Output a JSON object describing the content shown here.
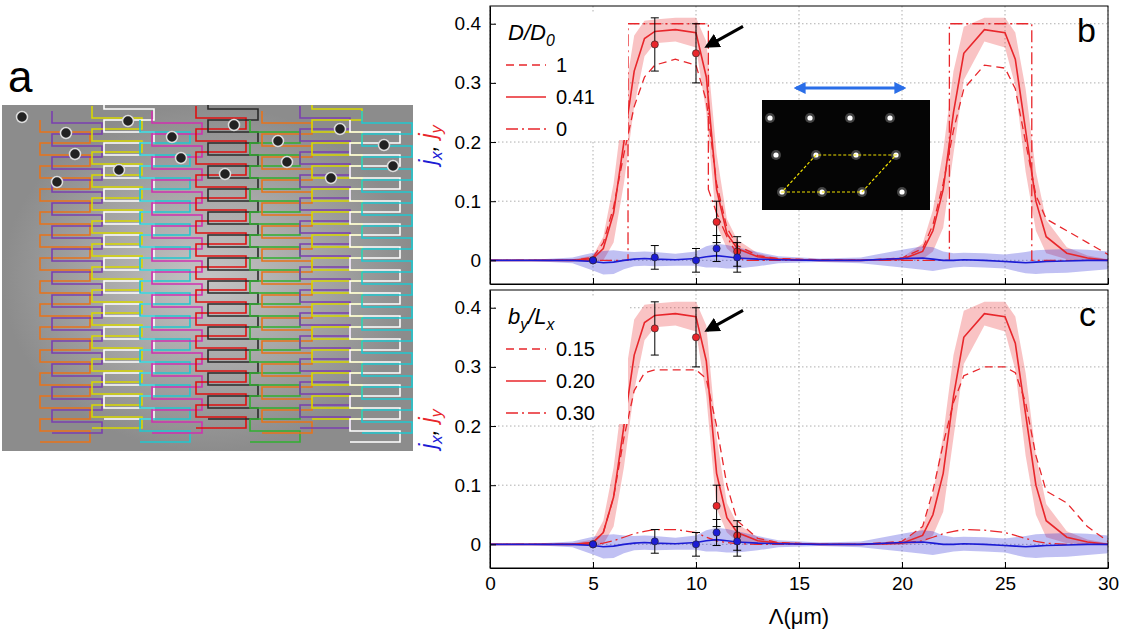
{
  "image_panel": {
    "label": "a"
  },
  "chart_data": [
    {
      "type": "line",
      "label": "b",
      "ylabel": [
        {
          "text": "j",
          "color": "#1c1cd4"
        },
        {
          "text": "x",
          "sub": true,
          "color": "#1c1cd4"
        },
        {
          "text": ", "
        },
        {
          "text": "j",
          "color": "#e8262b"
        },
        {
          "text": "y",
          "sub": true,
          "color": "#e8262b"
        }
      ],
      "legend_title": [
        {
          "text": "D/D"
        },
        {
          "text": "0",
          "sub": true
        }
      ],
      "legend": "upper left",
      "grid": true,
      "tick_labels": "y",
      "xlim": [
        0,
        30
      ],
      "xticks": [
        0,
        5,
        10,
        15,
        20,
        25,
        30
      ],
      "ylim": [
        -0.04,
        0.43
      ],
      "yticks": [
        0,
        0.1,
        0.2,
        0.3,
        0.4
      ],
      "x": [
        0,
        2,
        4,
        5,
        5.5,
        6,
        6.5,
        7,
        7.5,
        8,
        9,
        10,
        10.5,
        11,
        11.5,
        12,
        13,
        14,
        16,
        18,
        20,
        21,
        21.5,
        22,
        22.5,
        23,
        24,
        25,
        25.5,
        26,
        26.5,
        27,
        28,
        29,
        30
      ],
      "series": [
        {
          "name": "1",
          "type": "line",
          "color": "#e8262b",
          "line_style": "dashed",
          "values": [
            0,
            0,
            0,
            0.005,
            0.03,
            0.09,
            0.18,
            0.26,
            0.31,
            0.33,
            0.34,
            0.33,
            0.27,
            0.13,
            0.055,
            0.025,
            0.008,
            0.003,
            0.001,
            0,
            0.004,
            0.02,
            0.06,
            0.13,
            0.22,
            0.29,
            0.33,
            0.325,
            0.29,
            0.2,
            0.11,
            0.07,
            0.05,
            0.03,
            0.01
          ]
        },
        {
          "name": "0.41",
          "type": "line",
          "color": "#e8262b",
          "line_style": "solid",
          "values": [
            0,
            0,
            0,
            0.003,
            0.02,
            0.08,
            0.2,
            0.32,
            0.375,
            0.387,
            0.39,
            0.385,
            0.31,
            0.12,
            0.045,
            0.02,
            0.006,
            0.002,
            0,
            0,
            0.002,
            0.015,
            0.05,
            0.12,
            0.25,
            0.35,
            0.39,
            0.385,
            0.34,
            0.22,
            0.1,
            0.04,
            0.012,
            0.004,
            0
          ],
          "band": [
            0,
            0,
            0.002,
            0.005,
            0.02,
            0.05,
            0.07,
            0.06,
            0.03,
            0.02,
            0.02,
            0.025,
            0.06,
            0.06,
            0.025,
            0.015,
            0.006,
            0.002,
            0.001,
            0.001,
            0.003,
            0.013,
            0.035,
            0.065,
            0.07,
            0.045,
            0.02,
            0.025,
            0.045,
            0.07,
            0.05,
            0.028,
            0.01,
            0.004,
            0.002
          ]
        },
        {
          "name": "0",
          "type": "line",
          "color": "#e8262b",
          "line_style": "dashdot",
          "x": [
            0,
            6.7,
            6.7,
            10.6,
            10.6,
            11,
            11.5,
            12,
            12.3,
            22.3,
            22.3,
            26.3,
            26.3,
            30
          ],
          "values": [
            0,
            0,
            0.4,
            0.4,
            0.12,
            0.08,
            0.04,
            0.01,
            0,
            0,
            0.4,
            0.4,
            0,
            0
          ]
        },
        {
          "type": "line",
          "color": "#1c1cd4",
          "line_style": "solid",
          "values": [
            0,
            0,
            0,
            -0.002,
            -0.004,
            -0.003,
            0,
            0.002,
            0.003,
            0.002,
            0.001,
            0.003,
            0.006,
            0.008,
            0.006,
            0.004,
            0.002,
            0.001,
            0,
            0,
            0.003,
            0.004,
            0.002,
            0,
            0,
            0.001,
            0,
            -0.002,
            -0.003,
            -0.004,
            -0.003,
            -0.002,
            -0.001,
            0,
            0
          ],
          "band": [
            0.001,
            0.001,
            0.005,
            0.015,
            0.02,
            0.02,
            0.015,
            0.012,
            0.012,
            0.012,
            0.01,
            0.012,
            0.018,
            0.02,
            0.02,
            0.018,
            0.012,
            0.006,
            0.003,
            0.005,
            0.015,
            0.02,
            0.02,
            0.015,
            0.012,
            0.012,
            0.012,
            0.012,
            0.015,
            0.018,
            0.02,
            0.02,
            0.02,
            0.018,
            0.015
          ]
        },
        {
          "type": "scatter",
          "color": "#e8262b",
          "marker": "circle",
          "x": [
            5,
            8,
            10,
            11,
            12
          ],
          "values": [
            0,
            0.365,
            0.35,
            0.065,
            0.015
          ],
          "error": [
            0,
            0.045,
            0.05,
            0.035,
            0.025
          ]
        },
        {
          "type": "scatter",
          "color": "#1c1cd4",
          "marker": "circle",
          "x": [
            5,
            8,
            10,
            11,
            12
          ],
          "values": [
            0,
            0.005,
            0,
            0.02,
            0.005
          ],
          "error": [
            0,
            0.02,
            0.02,
            0.022,
            0.025
          ]
        }
      ]
    },
    {
      "type": "line",
      "label": "c",
      "xlabel": "Λ(μm)",
      "ylabel": [
        {
          "text": "j",
          "color": "#1c1cd4"
        },
        {
          "text": "x",
          "sub": true,
          "color": "#1c1cd4"
        },
        {
          "text": ", "
        },
        {
          "text": "j",
          "color": "#e8262b"
        },
        {
          "text": "y",
          "sub": true,
          "color": "#e8262b"
        }
      ],
      "legend_title": [
        {
          "text": "b"
        },
        {
          "text": "y",
          "sub": true
        },
        {
          "text": "/L"
        },
        {
          "text": "x",
          "sub": true
        }
      ],
      "legend": "upper left",
      "grid": true,
      "tick_labels": true,
      "xlim": [
        0,
        30
      ],
      "xticks": [
        0,
        5,
        10,
        15,
        20,
        25,
        30
      ],
      "ylim": [
        -0.04,
        0.43
      ],
      "yticks": [
        0,
        0.1,
        0.2,
        0.3,
        0.4
      ],
      "x": [
        0,
        2,
        4,
        5,
        5.5,
        6,
        6.5,
        7,
        7.5,
        8,
        9,
        10,
        10.5,
        11,
        11.5,
        12,
        13,
        14,
        16,
        18,
        20,
        21,
        21.5,
        22,
        22.5,
        23,
        24,
        25,
        25.5,
        26,
        26.5,
        27,
        28,
        29,
        30
      ],
      "series": [
        {
          "name": "0.15",
          "type": "line",
          "color": "#e8262b",
          "line_style": "dashed",
          "values": [
            0,
            0,
            0,
            0.003,
            0.02,
            0.08,
            0.18,
            0.26,
            0.29,
            0.295,
            0.295,
            0.295,
            0.28,
            0.2,
            0.1,
            0.04,
            0.01,
            0.003,
            0,
            0,
            0.005,
            0.03,
            0.09,
            0.17,
            0.24,
            0.285,
            0.3,
            0.3,
            0.29,
            0.24,
            0.15,
            0.09,
            0.07,
            0.03,
            0.005
          ]
        },
        {
          "name": "0.20",
          "type": "line",
          "color": "#e8262b",
          "line_style": "solid",
          "values": [
            0,
            0,
            0,
            0.003,
            0.02,
            0.08,
            0.2,
            0.32,
            0.375,
            0.387,
            0.39,
            0.385,
            0.31,
            0.12,
            0.045,
            0.02,
            0.006,
            0.002,
            0,
            0,
            0.002,
            0.015,
            0.05,
            0.12,
            0.25,
            0.35,
            0.39,
            0.385,
            0.34,
            0.22,
            0.1,
            0.04,
            0.012,
            0.004,
            0
          ],
          "band": [
            0,
            0,
            0.002,
            0.005,
            0.02,
            0.05,
            0.07,
            0.06,
            0.03,
            0.02,
            0.02,
            0.025,
            0.06,
            0.06,
            0.025,
            0.015,
            0.006,
            0.002,
            0.001,
            0.001,
            0.003,
            0.013,
            0.035,
            0.065,
            0.07,
            0.045,
            0.02,
            0.025,
            0.045,
            0.07,
            0.05,
            0.028,
            0.01,
            0.004,
            0.002
          ]
        },
        {
          "name": "0.30",
          "type": "line",
          "color": "#e8262b",
          "line_style": "dashdot",
          "values": [
            0,
            0,
            0,
            0,
            0.002,
            0.006,
            0.012,
            0.018,
            0.022,
            0.025,
            0.025,
            0.02,
            0.012,
            0.006,
            0.003,
            0.001,
            0,
            0,
            0,
            0,
            0.002,
            0.006,
            0.012,
            0.018,
            0.022,
            0.025,
            0.024,
            0.02,
            0.015,
            0.01,
            0.005,
            0.002,
            0,
            0,
            0
          ]
        },
        {
          "type": "line",
          "color": "#1c1cd4",
          "line_style": "solid",
          "values": [
            0,
            0,
            0,
            -0.002,
            -0.004,
            -0.003,
            0,
            0.002,
            0.003,
            0.002,
            0.001,
            0.003,
            0.006,
            0.008,
            0.006,
            0.004,
            0.002,
            0.001,
            0,
            0,
            0.003,
            0.004,
            0.002,
            0,
            0,
            0.001,
            0,
            -0.002,
            -0.003,
            -0.004,
            -0.003,
            -0.002,
            -0.001,
            0,
            0
          ],
          "band": [
            0.001,
            0.001,
            0.005,
            0.015,
            0.02,
            0.02,
            0.015,
            0.012,
            0.012,
            0.012,
            0.01,
            0.012,
            0.018,
            0.02,
            0.02,
            0.018,
            0.012,
            0.006,
            0.003,
            0.005,
            0.015,
            0.02,
            0.02,
            0.015,
            0.012,
            0.012,
            0.012,
            0.012,
            0.015,
            0.018,
            0.02,
            0.02,
            0.02,
            0.018,
            0.015
          ]
        },
        {
          "type": "scatter",
          "color": "#e8262b",
          "marker": "circle",
          "x": [
            5,
            8,
            10,
            11,
            12
          ],
          "values": [
            0,
            0.365,
            0.35,
            0.065,
            0.015
          ],
          "error": [
            0,
            0.045,
            0.05,
            0.035,
            0.025
          ]
        },
        {
          "type": "scatter",
          "color": "#1c1cd4",
          "marker": "circle",
          "x": [
            5,
            8,
            10,
            11,
            12
          ],
          "values": [
            0,
            0.005,
            0,
            0.02,
            0.005
          ],
          "error": [
            0,
            0.02,
            0.02,
            0.022,
            0.025
          ]
        }
      ]
    }
  ]
}
